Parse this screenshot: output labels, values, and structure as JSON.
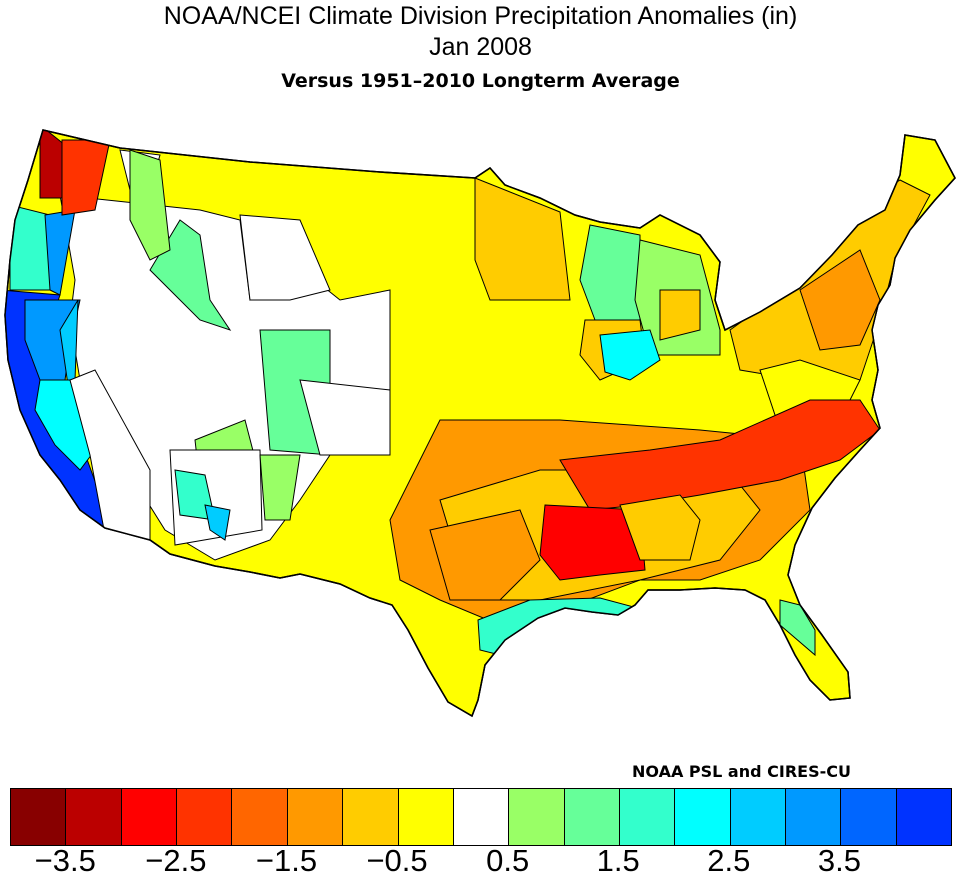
{
  "title": "NOAA/NCEI Climate Division Precipitation Anomalies (in)",
  "period": "Jan 2008",
  "subtitle": "Versus 1951–2010 Longterm Average",
  "credit": "NOAA PSL and CIRES-CU",
  "colorbar": {
    "colors": [
      "#880000",
      "#bb0000",
      "#ff0000",
      "#ff3300",
      "#ff6600",
      "#ff9900",
      "#ffcc00",
      "#ffff00",
      "#ffffff",
      "#99ff66",
      "#66ff99",
      "#33ffcc",
      "#00ffff",
      "#00ccff",
      "#0099ff",
      "#0066ff",
      "#0033ff"
    ],
    "boundaries": [
      -3.5,
      -3.0,
      -2.5,
      -2.0,
      -1.5,
      -1.0,
      -0.5,
      0.0,
      0.5,
      1.0,
      1.5,
      2.0,
      2.5,
      3.0,
      3.5,
      4.0
    ],
    "labels": [
      "−3.5",
      "−2.5",
      "−1.5",
      "−0.5",
      "0.5",
      "1.5",
      "2.5",
      "3.5"
    ]
  },
  "map_data": {
    "units": "in",
    "base_anomaly": -0.3,
    "region_anomalies": [
      0.2,
      -1.0,
      0.2,
      0.2,
      4.2,
      3.2,
      2.7,
      1.2,
      1.7,
      3.2,
      -3.2,
      -2.2,
      0.7,
      1.2,
      2.2,
      0.2,
      0.7,
      0.2,
      1.7,
      2.7,
      1.2,
      0.7,
      -0.8,
      -0.8,
      -1.3,
      -0.3,
      -1.3,
      -0.8,
      -2.2,
      -2.7,
      -1.3,
      -0.8,
      1.7,
      0.2,
      -0.8,
      0.7,
      2.2,
      1.2
    ]
  }
}
